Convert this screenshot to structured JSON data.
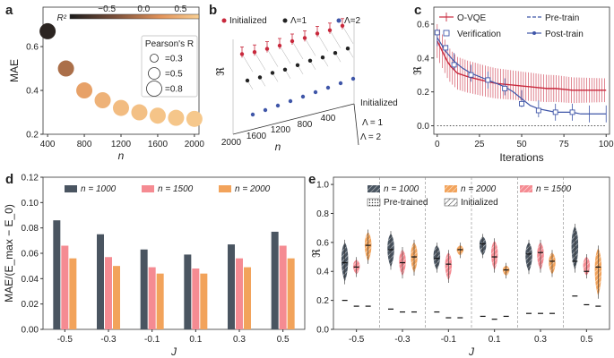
{
  "panel_labels": [
    "a",
    "b",
    "c",
    "d",
    "e"
  ],
  "chart_data": [
    {
      "panel": "a",
      "type": "scatter",
      "xlabel": "n",
      "ylabel": "MAE",
      "x_ticks": [
        "400",
        "800",
        "1200",
        "1600",
        "2000"
      ],
      "y_ticks": [
        "0.2",
        "0.4",
        "0.6"
      ],
      "xlim": [
        350,
        2050
      ],
      "ylim": [
        0.2,
        0.78
      ],
      "points": [
        {
          "x": 400,
          "y": 0.67,
          "r2": -0.9
        },
        {
          "x": 600,
          "y": 0.5,
          "r2": -0.1
        },
        {
          "x": 800,
          "y": 0.4,
          "r2": 0.35
        },
        {
          "x": 1000,
          "y": 0.355,
          "r2": 0.5
        },
        {
          "x": 1200,
          "y": 0.32,
          "r2": 0.58
        },
        {
          "x": 1400,
          "y": 0.3,
          "r2": 0.62
        },
        {
          "x": 1600,
          "y": 0.285,
          "r2": 0.65
        },
        {
          "x": 1800,
          "y": 0.275,
          "r2": 0.67
        },
        {
          "x": 2000,
          "y": 0.27,
          "r2": 0.69
        }
      ],
      "colorbar_label": "R²",
      "colorbar_ticks": [
        "−0.5",
        "0.0",
        "0.5"
      ],
      "colorbar_range": [
        -1.0,
        0.75
      ],
      "size_legend_title": "Pearson's R",
      "size_legend": [
        "=0.3",
        "=0.5",
        "=0.8"
      ]
    },
    {
      "panel": "b",
      "type": "line",
      "ylabel": "ℜ",
      "xlabel": "n",
      "x_ticks": [
        "2000",
        "1600",
        "1200",
        "800",
        "400"
      ],
      "side_labels": [
        "Initialized",
        "Λ = 1",
        "Λ = 2"
      ],
      "series": [
        {
          "name": "Initialized",
          "color": "#c8283c",
          "values": [
            0.52,
            0.5,
            0.49,
            0.48,
            0.48,
            0.47,
            0.47,
            0.46,
            0.46
          ]
        },
        {
          "name": "Λ=1",
          "color": "#222222",
          "values": [
            0.38,
            0.37,
            0.37,
            0.36,
            0.36,
            0.36,
            0.35,
            0.35,
            0.35
          ]
        },
        {
          "name": "Λ=2",
          "color": "#3f56a8",
          "values": [
            0.18,
            0.18,
            0.18,
            0.18,
            0.18,
            0.18,
            0.18,
            0.18,
            0.18
          ]
        }
      ]
    },
    {
      "panel": "c",
      "type": "line",
      "xlabel": "Iterations",
      "ylabel": "ℜ",
      "x_ticks": [
        "0",
        "25",
        "50",
        "75",
        "100"
      ],
      "y_ticks": [
        "0.0",
        "0.2",
        "0.4",
        "0.6"
      ],
      "xlim": [
        -2,
        102
      ],
      "ylim": [
        -0.05,
        0.7
      ],
      "legend": [
        "O-VQE",
        "Verification",
        "Pre-train",
        "Post-train"
      ],
      "series": [
        {
          "name": "O-VQE",
          "color": "#c8283c",
          "x": [
            0,
            2,
            4,
            6,
            8,
            10,
            12,
            15,
            18,
            22,
            26,
            30,
            35,
            40,
            45,
            50,
            55,
            60,
            65,
            70,
            75,
            80,
            85,
            90,
            95,
            100
          ],
          "values": [
            0.5,
            0.46,
            0.42,
            0.38,
            0.35,
            0.33,
            0.31,
            0.3,
            0.29,
            0.28,
            0.27,
            0.26,
            0.25,
            0.245,
            0.24,
            0.235,
            0.23,
            0.225,
            0.22,
            0.22,
            0.215,
            0.21,
            0.21,
            0.21,
            0.21,
            0.21
          ]
        },
        {
          "name": "Verification",
          "color": "#3f56a8",
          "x": [
            0,
            5,
            10,
            20,
            30,
            40,
            50,
            60,
            70,
            80
          ],
          "values": [
            0.55,
            0.46,
            0.36,
            0.3,
            0.27,
            0.22,
            0.13,
            0.09,
            0.08,
            0.08
          ]
        },
        {
          "name": "Pre-train",
          "color": "#3f56a8",
          "x": [
            0,
            100
          ],
          "values": [
            0.0,
            0.0
          ]
        },
        {
          "name": "Post-train",
          "color": "#3f56a8",
          "x": [
            0,
            5,
            10,
            15,
            20,
            25,
            30,
            35,
            40,
            45,
            50,
            55,
            60,
            65,
            70,
            75,
            80,
            85,
            90,
            95,
            100
          ],
          "values": [
            0.52,
            0.44,
            0.38,
            0.34,
            0.31,
            0.29,
            0.27,
            0.25,
            0.23,
            0.2,
            0.16,
            0.12,
            0.1,
            0.09,
            0.08,
            0.08,
            0.08,
            0.07,
            0.07,
            0.07,
            0.07
          ]
        }
      ]
    },
    {
      "panel": "d",
      "type": "bar",
      "xlabel": "J",
      "ylabel": "MAE/(E_max − E_0)",
      "categories": [
        "-0.5",
        "-0.3",
        "-0.1",
        "0.1",
        "0.3",
        "0.5"
      ],
      "y_ticks": [
        "0.00",
        "0.02",
        "0.04",
        "0.06",
        "0.08",
        "0.10",
        "0.12"
      ],
      "ylim": [
        0,
        0.12
      ],
      "series": [
        {
          "name": "n = 1000",
          "color": "#4a5561",
          "values": [
            0.086,
            0.075,
            0.063,
            0.059,
            0.067,
            0.077
          ]
        },
        {
          "name": "n = 1500",
          "color": "#f58b92",
          "values": [
            0.066,
            0.057,
            0.049,
            0.048,
            0.056,
            0.066
          ]
        },
        {
          "name": "n = 2000",
          "color": "#f2a35b",
          "values": [
            0.056,
            0.05,
            0.044,
            0.044,
            0.049,
            0.056
          ]
        }
      ]
    },
    {
      "panel": "e",
      "type": "violin",
      "xlabel": "J",
      "ylabel": "ℜ",
      "categories": [
        "-0.5",
        "-0.3",
        "-0.1",
        "0.1",
        "0.3",
        "0.5"
      ],
      "y_ticks": [
        "0.0",
        "0.2",
        "0.4",
        "0.6",
        "0.8",
        "1.0"
      ],
      "ylim": [
        0,
        1.05
      ],
      "legend": [
        "n = 1000",
        "n = 2000",
        "n = 1500",
        "Pre-trained",
        "Initialized"
      ],
      "series": [
        {
          "name": "n = 1000",
          "color": "#4a5561",
          "medians": [
            0.46,
            0.55,
            0.49,
            0.59,
            0.52,
            0.47
          ],
          "mins": [
            0.33,
            0.43,
            0.41,
            0.51,
            0.4,
            0.41
          ],
          "maxs": [
            0.6,
            0.66,
            0.58,
            0.64,
            0.6,
            0.71
          ],
          "pretrained": [
            0.2,
            0.14,
            0.12,
            0.09,
            0.11,
            0.23
          ]
        },
        {
          "name": "n = 1500",
          "color": "#f58b92",
          "medians": [
            0.43,
            0.46,
            0.45,
            0.5,
            0.53,
            0.4
          ],
          "mins": [
            0.38,
            0.37,
            0.34,
            0.41,
            0.41,
            0.37
          ],
          "maxs": [
            0.48,
            0.55,
            0.53,
            0.61,
            0.6,
            0.5
          ],
          "pretrained": [
            0.16,
            0.12,
            0.08,
            0.07,
            0.11,
            0.17
          ]
        },
        {
          "name": "n = 2000",
          "color": "#f2a35b",
          "medians": [
            0.58,
            0.5,
            0.55,
            0.41,
            0.47,
            0.43
          ],
          "mins": [
            0.47,
            0.39,
            0.51,
            0.37,
            0.38,
            0.23
          ],
          "maxs": [
            0.67,
            0.6,
            0.58,
            0.44,
            0.53,
            0.56
          ],
          "pretrained": [
            0.16,
            0.12,
            0.08,
            0.09,
            0.11,
            0.16
          ]
        }
      ]
    }
  ]
}
